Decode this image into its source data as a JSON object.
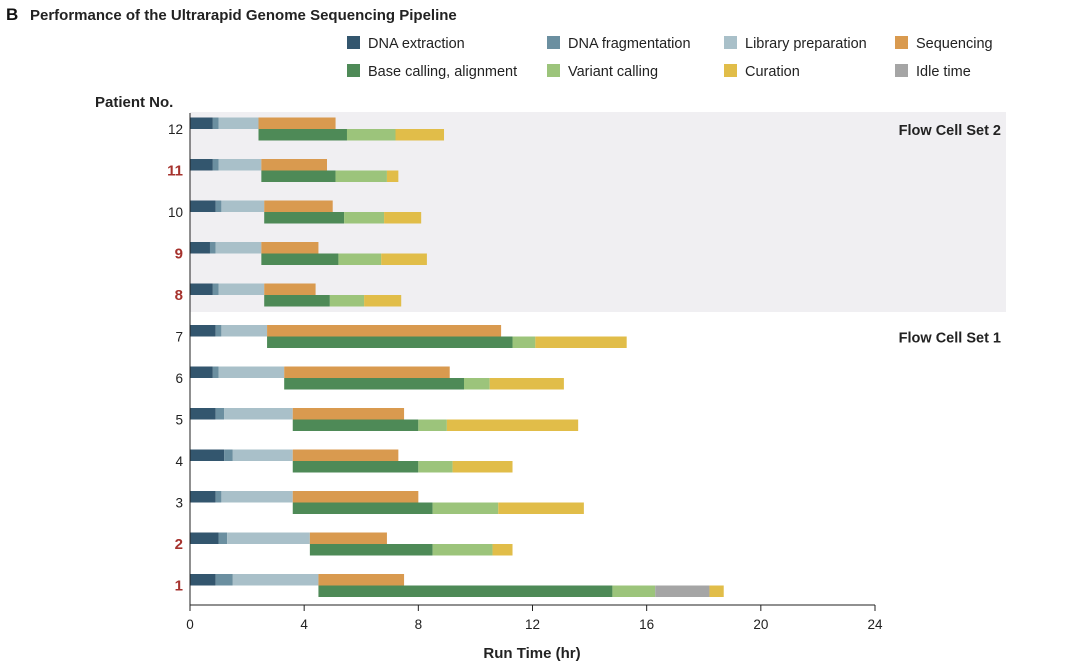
{
  "panel_letter": "B",
  "chart_data": {
    "type": "bar",
    "orientation": "horizontal-stacked-gantt",
    "title": "Performance of the Ultrarapid Genome Sequencing Pipeline",
    "xlabel": "Run Time (hr)",
    "ylabel": "Patient No.",
    "xlim": [
      0,
      24
    ],
    "xticks": [
      0,
      4,
      8,
      12,
      16,
      20,
      24
    ],
    "legend_position": "top-right",
    "grid": false,
    "stages": [
      {
        "key": "dna_extraction",
        "name": "DNA extraction",
        "color": "#33566e"
      },
      {
        "key": "dna_fragmentation",
        "name": "DNA fragmentation",
        "color": "#6b8fa0"
      },
      {
        "key": "library_preparation",
        "name": "Library preparation",
        "color": "#a9c0c9"
      },
      {
        "key": "sequencing",
        "name": "Sequencing",
        "color": "#d99a4f"
      },
      {
        "key": "base_calling",
        "name": "Base calling, alignment",
        "color": "#4e8a57"
      },
      {
        "key": "variant_calling",
        "name": "Variant calling",
        "color": "#9cc47b"
      },
      {
        "key": "curation",
        "name": "Curation",
        "color": "#e1bd49"
      },
      {
        "key": "idle_time",
        "name": "Idle time",
        "color": "#a5a5a5"
      }
    ],
    "groups": [
      {
        "label": "Flow Cell Set 2",
        "patients": [
          "12",
          "11",
          "10",
          "9",
          "8"
        ],
        "shaded": true
      },
      {
        "label": "Flow Cell Set 1",
        "patients": [
          "7",
          "6",
          "5",
          "4",
          "3",
          "2",
          "1"
        ],
        "shaded": false
      }
    ],
    "patients": [
      {
        "id": "12",
        "highlight": false,
        "top": [
          {
            "stage": "dna_extraction",
            "start": 0,
            "end": 0.8
          },
          {
            "stage": "dna_fragmentation",
            "start": 0.8,
            "end": 1.0
          },
          {
            "stage": "library_preparation",
            "start": 1.0,
            "end": 2.4
          },
          {
            "stage": "sequencing",
            "start": 2.4,
            "end": 5.1
          }
        ],
        "bottom": [
          {
            "stage": "base_calling",
            "start": 2.4,
            "end": 5.5
          },
          {
            "stage": "variant_calling",
            "start": 5.5,
            "end": 7.2
          },
          {
            "stage": "curation",
            "start": 7.2,
            "end": 8.9
          }
        ]
      },
      {
        "id": "11",
        "highlight": true,
        "top": [
          {
            "stage": "dna_extraction",
            "start": 0,
            "end": 0.8
          },
          {
            "stage": "dna_fragmentation",
            "start": 0.8,
            "end": 1.0
          },
          {
            "stage": "library_preparation",
            "start": 1.0,
            "end": 2.5
          },
          {
            "stage": "sequencing",
            "start": 2.5,
            "end": 4.8
          }
        ],
        "bottom": [
          {
            "stage": "base_calling",
            "start": 2.5,
            "end": 5.1
          },
          {
            "stage": "variant_calling",
            "start": 5.1,
            "end": 6.9
          },
          {
            "stage": "curation",
            "start": 6.9,
            "end": 7.3
          }
        ]
      },
      {
        "id": "10",
        "highlight": false,
        "top": [
          {
            "stage": "dna_extraction",
            "start": 0,
            "end": 0.9
          },
          {
            "stage": "dna_fragmentation",
            "start": 0.9,
            "end": 1.1
          },
          {
            "stage": "library_preparation",
            "start": 1.1,
            "end": 2.6
          },
          {
            "stage": "sequencing",
            "start": 2.6,
            "end": 5.0
          }
        ],
        "bottom": [
          {
            "stage": "base_calling",
            "start": 2.6,
            "end": 5.4
          },
          {
            "stage": "variant_calling",
            "start": 5.4,
            "end": 6.8
          },
          {
            "stage": "curation",
            "start": 6.8,
            "end": 8.1
          }
        ]
      },
      {
        "id": "9",
        "highlight": true,
        "top": [
          {
            "stage": "dna_extraction",
            "start": 0,
            "end": 0.7
          },
          {
            "stage": "dna_fragmentation",
            "start": 0.7,
            "end": 0.9
          },
          {
            "stage": "library_preparation",
            "start": 0.9,
            "end": 2.5
          },
          {
            "stage": "sequencing",
            "start": 2.5,
            "end": 4.5
          }
        ],
        "bottom": [
          {
            "stage": "base_calling",
            "start": 2.5,
            "end": 5.2
          },
          {
            "stage": "variant_calling",
            "start": 5.2,
            "end": 6.7
          },
          {
            "stage": "curation",
            "start": 6.7,
            "end": 8.3
          }
        ]
      },
      {
        "id": "8",
        "highlight": true,
        "top": [
          {
            "stage": "dna_extraction",
            "start": 0,
            "end": 0.8
          },
          {
            "stage": "dna_fragmentation",
            "start": 0.8,
            "end": 1.0
          },
          {
            "stage": "library_preparation",
            "start": 1.0,
            "end": 2.6
          },
          {
            "stage": "sequencing",
            "start": 2.6,
            "end": 4.4
          }
        ],
        "bottom": [
          {
            "stage": "base_calling",
            "start": 2.6,
            "end": 4.9
          },
          {
            "stage": "variant_calling",
            "start": 4.9,
            "end": 6.1
          },
          {
            "stage": "curation",
            "start": 6.1,
            "end": 7.4
          }
        ]
      },
      {
        "id": "7",
        "highlight": false,
        "top": [
          {
            "stage": "dna_extraction",
            "start": 0,
            "end": 0.9
          },
          {
            "stage": "dna_fragmentation",
            "start": 0.9,
            "end": 1.1
          },
          {
            "stage": "library_preparation",
            "start": 1.1,
            "end": 2.7
          },
          {
            "stage": "sequencing",
            "start": 2.7,
            "end": 10.9
          }
        ],
        "bottom": [
          {
            "stage": "base_calling",
            "start": 2.7,
            "end": 11.3
          },
          {
            "stage": "variant_calling",
            "start": 11.3,
            "end": 12.1
          },
          {
            "stage": "curation",
            "start": 12.1,
            "end": 15.3
          }
        ]
      },
      {
        "id": "6",
        "highlight": false,
        "top": [
          {
            "stage": "dna_extraction",
            "start": 0,
            "end": 0.8
          },
          {
            "stage": "dna_fragmentation",
            "start": 0.8,
            "end": 1.0
          },
          {
            "stage": "library_preparation",
            "start": 1.0,
            "end": 3.3
          },
          {
            "stage": "sequencing",
            "start": 3.3,
            "end": 9.1
          }
        ],
        "bottom": [
          {
            "stage": "base_calling",
            "start": 3.3,
            "end": 9.6
          },
          {
            "stage": "variant_calling",
            "start": 9.6,
            "end": 10.5
          },
          {
            "stage": "curation",
            "start": 10.5,
            "end": 13.1
          }
        ]
      },
      {
        "id": "5",
        "highlight": false,
        "top": [
          {
            "stage": "dna_extraction",
            "start": 0,
            "end": 0.9
          },
          {
            "stage": "dna_fragmentation",
            "start": 0.9,
            "end": 1.2
          },
          {
            "stage": "library_preparation",
            "start": 1.2,
            "end": 3.6
          },
          {
            "stage": "sequencing",
            "start": 3.6,
            "end": 7.5
          }
        ],
        "bottom": [
          {
            "stage": "base_calling",
            "start": 3.6,
            "end": 8.0
          },
          {
            "stage": "variant_calling",
            "start": 8.0,
            "end": 9.0
          },
          {
            "stage": "curation",
            "start": 9.0,
            "end": 13.6
          }
        ]
      },
      {
        "id": "4",
        "highlight": false,
        "top": [
          {
            "stage": "dna_extraction",
            "start": 0,
            "end": 1.2
          },
          {
            "stage": "dna_fragmentation",
            "start": 1.2,
            "end": 1.5
          },
          {
            "stage": "library_preparation",
            "start": 1.5,
            "end": 3.6
          },
          {
            "stage": "sequencing",
            "start": 3.6,
            "end": 7.3
          }
        ],
        "bottom": [
          {
            "stage": "base_calling",
            "start": 3.6,
            "end": 8.0
          },
          {
            "stage": "variant_calling",
            "start": 8.0,
            "end": 9.2
          },
          {
            "stage": "curation",
            "start": 9.2,
            "end": 11.3
          }
        ]
      },
      {
        "id": "3",
        "highlight": false,
        "top": [
          {
            "stage": "dna_extraction",
            "start": 0,
            "end": 0.9
          },
          {
            "stage": "dna_fragmentation",
            "start": 0.9,
            "end": 1.1
          },
          {
            "stage": "library_preparation",
            "start": 1.1,
            "end": 3.6
          },
          {
            "stage": "sequencing",
            "start": 3.6,
            "end": 8.0
          }
        ],
        "bottom": [
          {
            "stage": "base_calling",
            "start": 3.6,
            "end": 8.5
          },
          {
            "stage": "variant_calling",
            "start": 8.5,
            "end": 10.8
          },
          {
            "stage": "curation",
            "start": 10.8,
            "end": 13.8
          }
        ]
      },
      {
        "id": "2",
        "highlight": true,
        "top": [
          {
            "stage": "dna_extraction",
            "start": 0,
            "end": 1.0
          },
          {
            "stage": "dna_fragmentation",
            "start": 1.0,
            "end": 1.3
          },
          {
            "stage": "library_preparation",
            "start": 1.3,
            "end": 4.2
          },
          {
            "stage": "sequencing",
            "start": 4.2,
            "end": 6.9
          }
        ],
        "bottom": [
          {
            "stage": "base_calling",
            "start": 4.2,
            "end": 8.5
          },
          {
            "stage": "variant_calling",
            "start": 8.5,
            "end": 10.6
          },
          {
            "stage": "curation",
            "start": 10.6,
            "end": 11.3
          }
        ]
      },
      {
        "id": "1",
        "highlight": true,
        "top": [
          {
            "stage": "dna_extraction",
            "start": 0,
            "end": 0.9
          },
          {
            "stage": "dna_fragmentation",
            "start": 0.9,
            "end": 1.5
          },
          {
            "stage": "library_preparation",
            "start": 1.5,
            "end": 4.5
          },
          {
            "stage": "sequencing",
            "start": 4.5,
            "end": 7.5
          }
        ],
        "bottom": [
          {
            "stage": "base_calling",
            "start": 4.5,
            "end": 14.8
          },
          {
            "stage": "variant_calling",
            "start": 14.8,
            "end": 16.3
          },
          {
            "stage": "idle_time",
            "start": 16.3,
            "end": 18.2
          },
          {
            "stage": "curation",
            "start": 18.2,
            "end": 18.7
          }
        ]
      }
    ]
  }
}
